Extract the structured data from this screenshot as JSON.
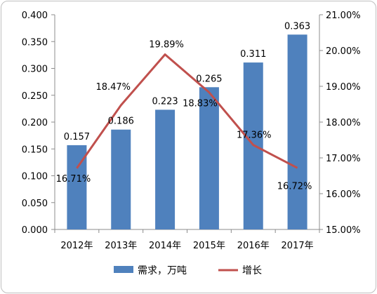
{
  "chart_data": {
    "type": "bar",
    "categories": [
      "2012年",
      "2013年",
      "2014年",
      "2015年",
      "2016年",
      "2017年"
    ],
    "series": [
      {
        "name": "需求，万吨",
        "type": "bar",
        "axis": "left",
        "color": "#4F81BD",
        "values": [
          0.157,
          0.186,
          0.223,
          0.265,
          0.311,
          0.363
        ],
        "labels": [
          "0.157",
          "0.186",
          "0.223",
          "0.265",
          "0.311",
          "0.363"
        ]
      },
      {
        "name": "增长",
        "type": "line",
        "axis": "right",
        "color": "#C0504D",
        "values": [
          16.71,
          18.47,
          19.89,
          18.83,
          17.36,
          16.72
        ],
        "labels": [
          "16.71%",
          "18.47%",
          "19.89%",
          "18.83%",
          "17.36%",
          "16.72%"
        ]
      }
    ],
    "y_left": {
      "ylim": [
        0,
        0.4
      ],
      "ticks": [
        "0.000",
        "0.050",
        "0.100",
        "0.150",
        "0.200",
        "0.250",
        "0.300",
        "0.350",
        "0.400"
      ]
    },
    "y_right": {
      "ylim": [
        15,
        21
      ],
      "ticks": [
        "15.00%",
        "16.00%",
        "17.00%",
        "18.00%",
        "19.00%",
        "20.00%",
        "21.00%"
      ]
    },
    "legend": "bottom"
  }
}
